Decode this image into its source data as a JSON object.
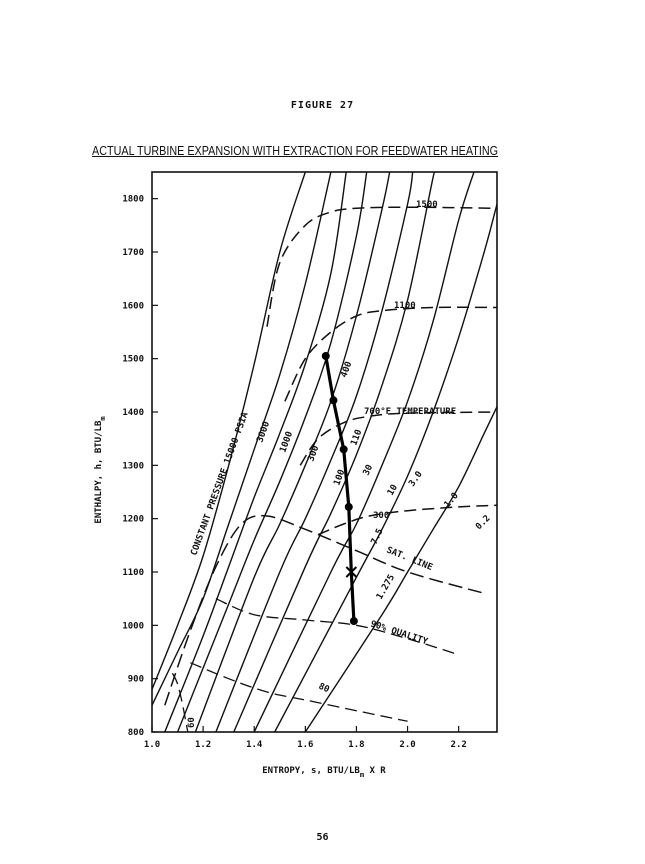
{
  "figure_label": "FIGURE 27",
  "title": "ACTUAL TURBINE EXPANSION WITH EXTRACTION FOR FEEDWATER HEATING",
  "page_number": "56",
  "chart_data": {
    "type": "line",
    "title": "ACTUAL TURBINE EXPANSION WITH EXTRACTION FOR FEEDWATER HEATING",
    "xlabel": "ENTROPY, s, BTU/LB",
    "xlabel_sub": "m",
    "xlabel_tail": " X R",
    "ylabel": "ENTHALPY, h, BTU/LB",
    "ylabel_sub": "m",
    "xlim": [
      1.0,
      2.35
    ],
    "ylim": [
      800,
      1850
    ],
    "xticks": [
      "1.0",
      "1.2",
      "1.4",
      "1.6",
      "1.8",
      "2.0",
      "2.2"
    ],
    "xtick_values": [
      1.0,
      1.2,
      1.4,
      1.6,
      1.8,
      2.0,
      2.2
    ],
    "yticks": [
      "800",
      "900",
      "1000",
      "1100",
      "1200",
      "1300",
      "1400",
      "1500",
      "1600",
      "1700",
      "1800"
    ],
    "ytick_values": [
      800,
      900,
      1000,
      1100,
      1200,
      1300,
      1400,
      1500,
      1600,
      1700,
      1800
    ],
    "grid": false,
    "constant_pressure_lines": [
      {
        "label": "CONSTANT PRESSURE 15000 PSIA",
        "points": [
          [
            1.0,
            880
          ],
          [
            1.1,
            1000
          ],
          [
            1.2,
            1130
          ],
          [
            1.3,
            1300
          ],
          [
            1.4,
            1490
          ],
          [
            1.5,
            1700
          ],
          [
            1.6,
            1850
          ]
        ]
      },
      {
        "label": "3000",
        "points": [
          [
            1.0,
            850
          ],
          [
            1.1,
            950
          ],
          [
            1.2,
            1050
          ],
          [
            1.3,
            1190
          ],
          [
            1.4,
            1330
          ],
          [
            1.5,
            1470
          ],
          [
            1.6,
            1640
          ],
          [
            1.7,
            1850
          ]
        ]
      },
      {
        "label": "1000",
        "points": [
          [
            1.05,
            800
          ],
          [
            1.2,
            980
          ],
          [
            1.3,
            1110
          ],
          [
            1.4,
            1240
          ],
          [
            1.5,
            1360
          ],
          [
            1.6,
            1490
          ],
          [
            1.7,
            1660
          ],
          [
            1.76,
            1850
          ]
        ]
      },
      {
        "label": "300",
        "points": [
          [
            1.1,
            800
          ],
          [
            1.3,
            1040
          ],
          [
            1.4,
            1160
          ],
          [
            1.5,
            1270
          ],
          [
            1.6,
            1390
          ],
          [
            1.7,
            1530
          ],
          [
            1.8,
            1730
          ],
          [
            1.84,
            1850
          ]
        ]
      },
      {
        "label": "100",
        "points": [
          [
            1.17,
            800
          ],
          [
            1.4,
            1090
          ],
          [
            1.5,
            1190
          ],
          [
            1.6,
            1300
          ],
          [
            1.7,
            1420
          ],
          [
            1.8,
            1580
          ],
          [
            1.9,
            1780
          ],
          [
            1.93,
            1850
          ]
        ]
      },
      {
        "label": "30",
        "points": [
          [
            1.25,
            800
          ],
          [
            1.5,
            1100
          ],
          [
            1.6,
            1200
          ],
          [
            1.7,
            1310
          ],
          [
            1.8,
            1430
          ],
          [
            1.9,
            1590
          ],
          [
            2.0,
            1790
          ],
          [
            2.02,
            1850
          ]
        ]
      },
      {
        "label": "10",
        "points": [
          [
            1.32,
            800
          ],
          [
            1.6,
            1110
          ],
          [
            1.7,
            1210
          ],
          [
            1.8,
            1320
          ],
          [
            1.9,
            1450
          ],
          [
            2.0,
            1610
          ],
          [
            2.1,
            1840
          ],
          [
            2.11,
            1850
          ]
        ]
      },
      {
        "label": "3.0",
        "points": [
          [
            1.4,
            800
          ],
          [
            1.7,
            1100
          ],
          [
            1.8,
            1190
          ],
          [
            1.9,
            1300
          ],
          [
            2.0,
            1420
          ],
          [
            2.1,
            1570
          ],
          [
            2.2,
            1760
          ],
          [
            2.26,
            1850
          ]
        ]
      },
      {
        "label": "1.0",
        "points": [
          [
            1.48,
            800
          ],
          [
            1.8,
            1090
          ],
          [
            1.9,
            1180
          ],
          [
            2.0,
            1280
          ],
          [
            2.1,
            1400
          ],
          [
            2.2,
            1540
          ],
          [
            2.3,
            1700
          ],
          [
            2.35,
            1790
          ]
        ]
      },
      {
        "label": "0.2",
        "points": [
          [
            1.6,
            800
          ],
          [
            1.9,
            1020
          ],
          [
            2.0,
            1100
          ],
          [
            2.1,
            1180
          ],
          [
            2.2,
            1260
          ],
          [
            2.3,
            1360
          ],
          [
            2.35,
            1410
          ]
        ]
      }
    ],
    "constant_temperature_lines": [
      {
        "label": "1500",
        "points": [
          [
            1.45,
            1560
          ],
          [
            1.5,
            1680
          ],
          [
            1.6,
            1750
          ],
          [
            1.7,
            1775
          ],
          [
            1.8,
            1782
          ],
          [
            2.0,
            1784
          ],
          [
            2.35,
            1782
          ]
        ]
      },
      {
        "label": "1100",
        "points": [
          [
            1.52,
            1420
          ],
          [
            1.6,
            1500
          ],
          [
            1.7,
            1550
          ],
          [
            1.8,
            1580
          ],
          [
            1.9,
            1590
          ],
          [
            2.1,
            1596
          ],
          [
            2.35,
            1596
          ]
        ]
      },
      {
        "label": "700°F TEMPERATURE",
        "points": [
          [
            1.58,
            1300
          ],
          [
            1.65,
            1350
          ],
          [
            1.75,
            1380
          ],
          [
            1.85,
            1392
          ],
          [
            2.0,
            1398
          ],
          [
            2.35,
            1400
          ]
        ]
      },
      {
        "label": "300",
        "points": [
          [
            1.65,
            1170
          ],
          [
            1.75,
            1190
          ],
          [
            1.85,
            1205
          ],
          [
            2.0,
            1215
          ],
          [
            2.2,
            1222
          ],
          [
            2.35,
            1225
          ]
        ]
      }
    ],
    "saturation_line": {
      "label": "SAT. LINE",
      "points": [
        [
          1.05,
          850
        ],
        [
          1.15,
          990
        ],
        [
          1.25,
          1110
        ],
        [
          1.35,
          1190
        ],
        [
          1.45,
          1205
        ],
        [
          1.6,
          1180
        ],
        [
          1.8,
          1140
        ],
        [
          2.0,
          1100
        ],
        [
          2.3,
          1060
        ]
      ]
    },
    "quality_lines": [
      {
        "label": "90% QUALITY",
        "points": [
          [
            1.25,
            1050
          ],
          [
            1.4,
            1020
          ],
          [
            1.6,
            1010
          ],
          [
            1.8,
            1000
          ],
          [
            2.0,
            975
          ],
          [
            2.2,
            945
          ]
        ]
      },
      {
        "label": "80",
        "points": [
          [
            1.15,
            930
          ],
          [
            1.3,
            900
          ],
          [
            1.45,
            875
          ],
          [
            1.6,
            860
          ],
          [
            1.8,
            840
          ],
          [
            2.0,
            820
          ]
        ]
      },
      {
        "label": "60",
        "points": [
          [
            1.08,
            910
          ],
          [
            1.1,
            890
          ],
          [
            1.12,
            850
          ],
          [
            1.14,
            800
          ]
        ]
      }
    ],
    "expansion_line": {
      "points": [
        [
          1.68,
          1505
        ],
        [
          1.71,
          1422
        ],
        [
          1.75,
          1330
        ],
        [
          1.77,
          1222
        ],
        [
          1.78,
          1100
        ],
        [
          1.79,
          1008
        ]
      ],
      "markers": [
        "dot",
        "dot",
        "dot",
        "dot",
        "cross",
        "dot"
      ]
    },
    "line_annotations": [
      "400",
      "110",
      "7.5",
      "1.275"
    ]
  },
  "icons": {
    "state_point": "filled-dot",
    "extraction_point": "cross-mark"
  }
}
